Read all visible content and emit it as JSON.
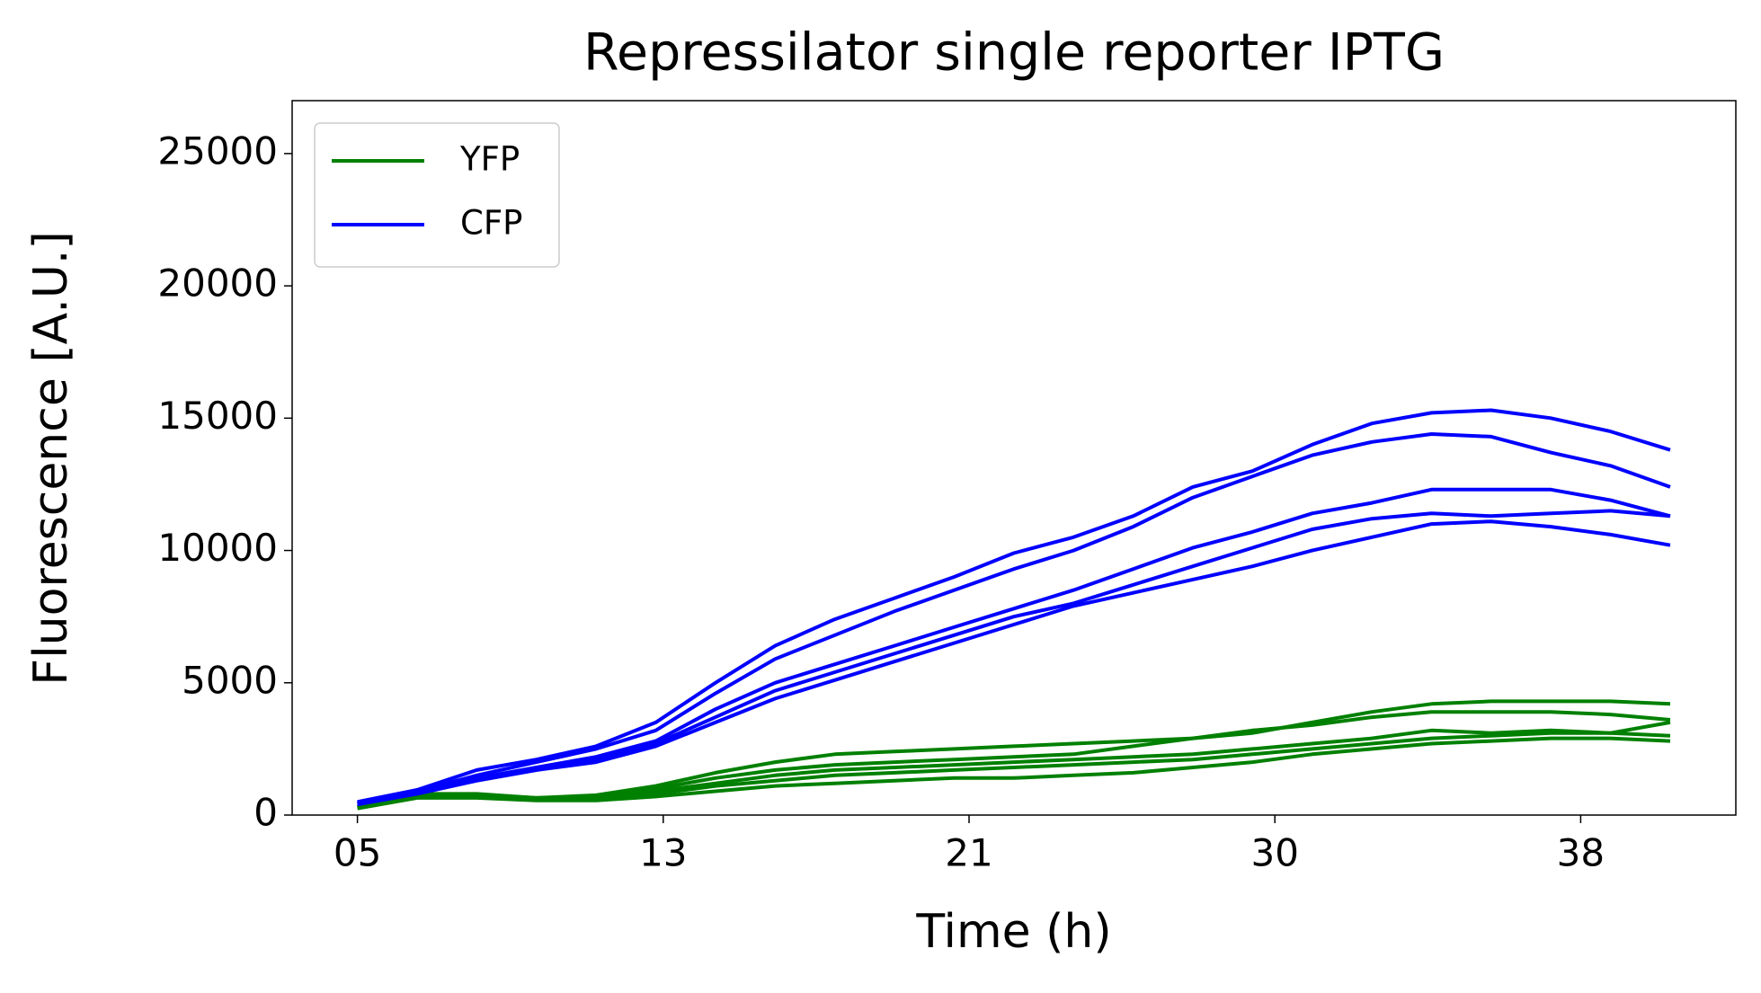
{
  "chart_data": {
    "type": "line",
    "title": "Repressilator single reporter IPTG",
    "xlabel": "Time (h)",
    "ylabel": "Fluorescence [A.U.]",
    "x": [
      5,
      6.6,
      8.2,
      9.8,
      11.4,
      13,
      14.6,
      16.2,
      17.8,
      19.4,
      21,
      22.6,
      24.2,
      25.8,
      27.4,
      29,
      30.6,
      32.2,
      33.8,
      35.4,
      37,
      38.6,
      40.2
    ],
    "xlim": [
      3.25,
      41.96
    ],
    "xticks": [
      {
        "value": 5,
        "label": "05"
      },
      {
        "value": 13.2,
        "label": "13"
      },
      {
        "value": 21.4,
        "label": "21"
      },
      {
        "value": 29.6,
        "label": "30"
      },
      {
        "value": 37.8,
        "label": "38"
      }
    ],
    "ylim": [
      0,
      27000
    ],
    "yticks": [
      0,
      5000,
      10000,
      15000,
      20000,
      25000
    ],
    "legend": "upper left",
    "series": [
      {
        "name": "YFP",
        "color": "#008000",
        "values": [
          [
            300,
            800,
            800,
            650,
            750,
            1100,
            1600,
            2000,
            2300,
            2400,
            2500,
            2600,
            2700,
            2800,
            2900,
            3100,
            3500,
            3900,
            4200,
            4300,
            4300,
            4300,
            4200
          ],
          [
            300,
            750,
            750,
            650,
            700,
            1000,
            1400,
            1700,
            1900,
            2000,
            2100,
            2200,
            2300,
            2600,
            2900,
            3200,
            3400,
            3700,
            3900,
            3900,
            3900,
            3800,
            3600
          ],
          [
            300,
            700,
            700,
            600,
            650,
            900,
            1200,
            1500,
            1700,
            1800,
            1900,
            2000,
            2100,
            2200,
            2300,
            2500,
            2700,
            2900,
            3200,
            3100,
            3200,
            3100,
            3500
          ],
          [
            300,
            700,
            700,
            600,
            600,
            800,
            1100,
            1300,
            1500,
            1600,
            1700,
            1800,
            1900,
            2000,
            2100,
            2300,
            2500,
            2700,
            2900,
            3000,
            3100,
            3100,
            3000
          ],
          [
            250,
            650,
            650,
            550,
            550,
            700,
            900,
            1100,
            1200,
            1300,
            1400,
            1400,
            1500,
            1600,
            1800,
            2000,
            2300,
            2500,
            2700,
            2800,
            2900,
            2900,
            2800
          ]
        ]
      },
      {
        "name": "CFP",
        "color": "#0000ff",
        "values": [
          [
            500,
            950,
            1700,
            2100,
            2600,
            3500,
            5000,
            6400,
            7400,
            8200,
            9000,
            9900,
            10500,
            11300,
            12400,
            13000,
            14000,
            14800,
            15200,
            15300,
            15000,
            14500,
            13800
          ],
          [
            450,
            900,
            1500,
            2000,
            2500,
            3200,
            4600,
            5900,
            6800,
            7700,
            8500,
            9300,
            10000,
            10900,
            12000,
            12800,
            13600,
            14100,
            14400,
            14300,
            13700,
            13200,
            12400
          ],
          [
            450,
            850,
            1400,
            1800,
            2200,
            2800,
            4000,
            5000,
            5700,
            6400,
            7100,
            7800,
            8500,
            9300,
            10100,
            10700,
            11400,
            11800,
            12300,
            12300,
            12300,
            11900,
            11300
          ],
          [
            400,
            850,
            1300,
            1700,
            2100,
            2700,
            3700,
            4700,
            5400,
            6100,
            6800,
            7500,
            8000,
            8700,
            9400,
            10100,
            10800,
            11200,
            11400,
            11300,
            11400,
            11500,
            11300
          ],
          [
            400,
            800,
            1300,
            1700,
            2000,
            2600,
            3500,
            4400,
            5100,
            5800,
            6500,
            7200,
            7900,
            8400,
            8900,
            9400,
            10000,
            10500,
            11000,
            11100,
            10900,
            10600,
            10200
          ]
        ]
      }
    ]
  }
}
